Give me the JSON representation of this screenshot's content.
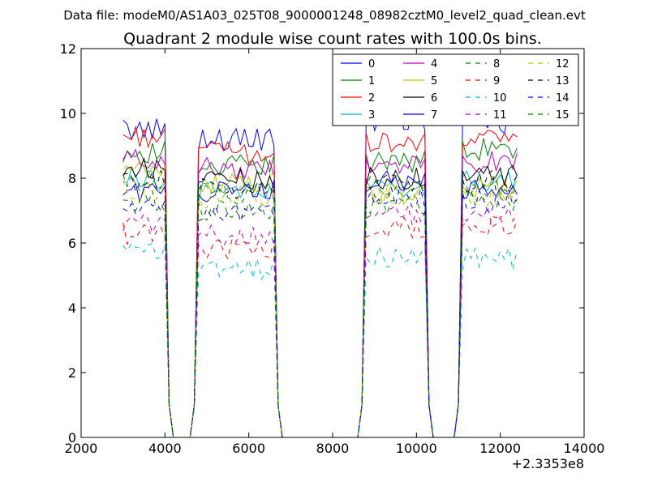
{
  "page": {
    "suptitle": "Data file: modeM0/AS1A03_025T08_9000001248_08982cztM0_level2_quad_clean.evt"
  },
  "chart_data": {
    "type": "line",
    "title": "Quadrant 2 module wise count rates with 100.0s bins.",
    "xlabel": "",
    "ylabel": "",
    "x_offset_label": "+2.3353e8",
    "xlim": [
      2000,
      14000
    ],
    "ylim": [
      0,
      12
    ],
    "xticks": [
      2000,
      4000,
      6000,
      8000,
      10000,
      12000,
      14000
    ],
    "yticks": [
      0,
      2,
      4,
      6,
      8,
      10,
      12
    ],
    "grid": false,
    "legend_position": "top-right",
    "legend_columns": 4,
    "segments": [
      {
        "start": 3000,
        "end": 4000
      },
      {
        "start": 4800,
        "end": 6600
      },
      {
        "start": 8800,
        "end": 10200
      },
      {
        "start": 11100,
        "end": 12400
      }
    ],
    "series": [
      {
        "name": "0",
        "color": "#0000ff",
        "dash": "solid",
        "levels": [
          9.5,
          9.2,
          9.8,
          9.7
        ]
      },
      {
        "name": "1",
        "color": "#008000",
        "dash": "solid",
        "levels": [
          8.8,
          8.4,
          8.5,
          8.9
        ]
      },
      {
        "name": "2",
        "color": "#ff0000",
        "dash": "solid",
        "levels": [
          9.3,
          8.8,
          9.1,
          9.2
        ]
      },
      {
        "name": "3",
        "color": "#00bfbf",
        "dash": "solid",
        "levels": [
          8.0,
          7.6,
          7.7,
          7.9
        ]
      },
      {
        "name": "4",
        "color": "#bf00bf",
        "dash": "solid",
        "levels": [
          8.6,
          8.3,
          8.4,
          8.5
        ]
      },
      {
        "name": "5",
        "color": "#bfbf00",
        "dash": "solid",
        "levels": [
          8.2,
          7.8,
          7.5,
          7.7
        ]
      },
      {
        "name": "6",
        "color": "#000000",
        "dash": "solid",
        "levels": [
          8.3,
          8.0,
          8.0,
          8.1
        ]
      },
      {
        "name": "7",
        "color": "#0000ff",
        "dash": "solid",
        "levels": [
          7.6,
          7.6,
          7.9,
          7.6
        ]
      },
      {
        "name": "8",
        "color": "#008000",
        "dash": "dashed",
        "levels": [
          7.3,
          7.0,
          7.2,
          7.3
        ]
      },
      {
        "name": "9",
        "color": "#ff0000",
        "dash": "dashed",
        "levels": [
          6.3,
          5.8,
          6.5,
          6.5
        ]
      },
      {
        "name": "10",
        "color": "#00bfbf",
        "dash": "dashed",
        "levels": [
          5.7,
          5.2,
          5.6,
          5.5
        ]
      },
      {
        "name": "11",
        "color": "#bf00bf",
        "dash": "dashed",
        "levels": [
          6.6,
          6.2,
          6.9,
          6.8
        ]
      },
      {
        "name": "12",
        "color": "#bfbf00",
        "dash": "dashed",
        "levels": [
          7.6,
          7.4,
          7.4,
          7.5
        ]
      },
      {
        "name": "13",
        "color": "#000000",
        "dash": "dashed",
        "levels": [
          7.9,
          7.7,
          7.9,
          7.9
        ]
      },
      {
        "name": "14",
        "color": "#0000ff",
        "dash": "dashed",
        "levels": [
          7.1,
          7.0,
          7.4,
          7.3
        ]
      },
      {
        "name": "15",
        "color": "#008000",
        "dash": "dashed",
        "levels": [
          7.8,
          7.5,
          7.8,
          7.7
        ]
      }
    ]
  }
}
